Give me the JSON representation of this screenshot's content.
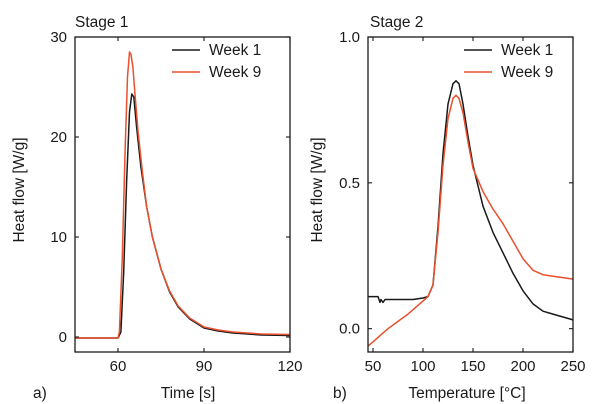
{
  "colors": {
    "week1": "#1a1a1a",
    "week9": "#e8502e",
    "axes": "#1a1a1a",
    "background": "#ffffff"
  },
  "chart_data": [
    {
      "type": "line",
      "title": "Stage 1",
      "panel_label": "a)",
      "xlabel": "Time [s]",
      "ylabel": "Heat flow [W/g]",
      "xlim": [
        45,
        120
      ],
      "ylim": [
        -1.5,
        30
      ],
      "xticks": [
        60,
        90,
        120
      ],
      "yticks": [
        0,
        10,
        20,
        30
      ],
      "xtick_labels": [
        "60",
        "90",
        "120"
      ],
      "ytick_labels": [
        "0",
        "10",
        "20",
        "30"
      ],
      "legend_position": "top-right",
      "series": [
        {
          "name": "Week 1",
          "color_key": "week1",
          "x": [
            45,
            60,
            61,
            62,
            63,
            64,
            64.8,
            65.5,
            66.5,
            68,
            70,
            72,
            75,
            78,
            81,
            85,
            90,
            95,
            100,
            110,
            120
          ],
          "y": [
            -0.1,
            -0.1,
            0.5,
            6.5,
            15.5,
            22.5,
            24.3,
            24.0,
            21.0,
            17.0,
            13.0,
            10.0,
            6.8,
            4.5,
            3.0,
            1.8,
            0.9,
            0.6,
            0.4,
            0.2,
            0.15
          ]
        },
        {
          "name": "Week 9",
          "color_key": "week9",
          "x": [
            45,
            60,
            60.5,
            61.5,
            62.5,
            63.3,
            64,
            64.5,
            65.2,
            66,
            67,
            68.5,
            70,
            72,
            75,
            78,
            81,
            85,
            90,
            95,
            100,
            110,
            120
          ],
          "y": [
            -0.1,
            -0.1,
            0.5,
            8.0,
            19.0,
            26.0,
            28.5,
            28.3,
            27.0,
            24.0,
            20.5,
            16.5,
            13.0,
            10.0,
            6.8,
            4.6,
            3.1,
            1.9,
            1.0,
            0.7,
            0.5,
            0.3,
            0.25
          ]
        }
      ]
    },
    {
      "type": "line",
      "title": "Stage 2",
      "panel_label": "b)",
      "xlabel": "Temperature [°C]",
      "ylabel": "Heat flow [W/g]",
      "xlim": [
        45,
        250
      ],
      "ylim": [
        -0.08,
        1.0
      ],
      "xticks": [
        50,
        100,
        150,
        200,
        250
      ],
      "yticks": [
        0.0,
        0.5,
        1.0
      ],
      "xtick_labels": [
        "50",
        "100",
        "150",
        "200",
        "250"
      ],
      "ytick_labels": [
        "0.0",
        "0.5",
        "1.0"
      ],
      "legend_position": "top-right",
      "series": [
        {
          "name": "Week 1",
          "color_key": "week1",
          "x": [
            45,
            55,
            57,
            58,
            60,
            62,
            70,
            80,
            90,
            100,
            105,
            110,
            115,
            120,
            125,
            130,
            133,
            136,
            140,
            145,
            150,
            160,
            170,
            180,
            190,
            200,
            210,
            220,
            230,
            240,
            250
          ],
          "y": [
            0.11,
            0.11,
            0.09,
            0.1,
            0.09,
            0.1,
            0.1,
            0.1,
            0.1,
            0.105,
            0.11,
            0.15,
            0.35,
            0.6,
            0.77,
            0.84,
            0.85,
            0.84,
            0.77,
            0.66,
            0.56,
            0.42,
            0.33,
            0.26,
            0.19,
            0.13,
            0.085,
            0.06,
            0.05,
            0.04,
            0.03
          ]
        },
        {
          "name": "Week 9",
          "color_key": "week9",
          "x": [
            45,
            55,
            65,
            75,
            85,
            95,
            100,
            105,
            110,
            115,
            120,
            125,
            130,
            133,
            136,
            140,
            145,
            150,
            160,
            170,
            180,
            190,
            200,
            210,
            220,
            230,
            240,
            250
          ],
          "y": [
            -0.06,
            -0.03,
            0.0,
            0.025,
            0.05,
            0.08,
            0.095,
            0.11,
            0.15,
            0.33,
            0.56,
            0.72,
            0.79,
            0.8,
            0.79,
            0.74,
            0.64,
            0.55,
            0.47,
            0.41,
            0.36,
            0.3,
            0.24,
            0.2,
            0.185,
            0.18,
            0.175,
            0.17
          ]
        }
      ]
    }
  ]
}
